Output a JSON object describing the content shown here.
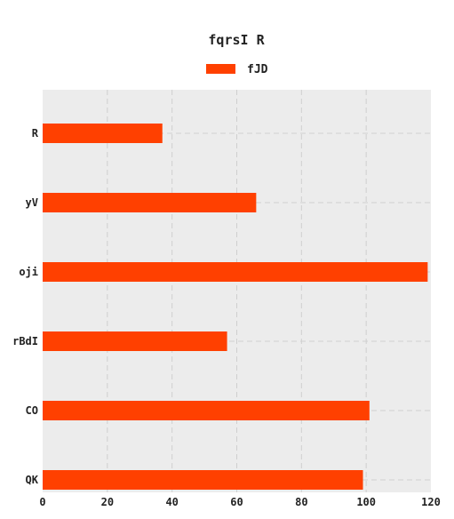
{
  "chart_data": {
    "type": "bar",
    "orientation": "horizontal",
    "title": "fqrsI R",
    "xlabel": "",
    "ylabel": "",
    "categories": [
      "R",
      "yV",
      "oji",
      "rBdI",
      "CO",
      "QK"
    ],
    "series": [
      {
        "name": "fJD",
        "values": [
          37,
          66,
          119,
          57,
          101,
          99
        ]
      }
    ],
    "xlim": [
      0,
      120
    ],
    "xticks": [
      0,
      20,
      40,
      60,
      80,
      100,
      120
    ],
    "grid": true,
    "legend": "top-center",
    "colors": {
      "bar": "#ff4000",
      "plot_background": "#ececec",
      "grid": "#cfcfcf"
    }
  }
}
